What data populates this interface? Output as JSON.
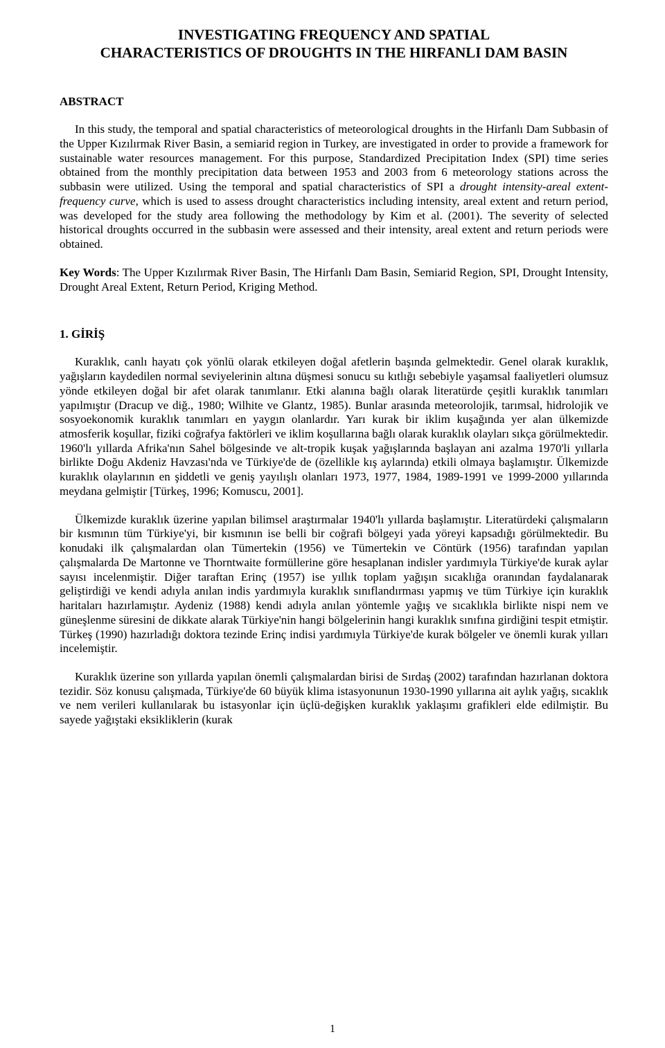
{
  "title_line1": "INVESTIGATING FREQUENCY AND SPATIAL",
  "title_line2": "CHARACTERISTICS OF DROUGHTS IN THE HIRFANLI DAM BASIN",
  "abstract_heading": "ABSTRACT",
  "abstract_pre": "In this study, the temporal and spatial characteristics of meteorological droughts in the Hirfanlı Dam Subbasin of the Upper Kızılırmak River Basin, a semiarid region in Turkey, are investigated in order to provide a framework for sustainable water resources management. For this purpose, Standardized Precipitation Index (SPI) time series obtained from the monthly precipitation data between 1953 and 2003 from 6 meteorology stations across the subbasin were utilized. Using the temporal and spatial characteristics of SPI a ",
  "abstract_italic": "drought intensity-areal extent-frequency curve",
  "abstract_post": ", which is used to assess drought characteristics including intensity, areal extent and return period, was developed for the study area following the methodology by Kim et al. (2001). The severity of selected historical droughts occurred in the subbasin were assessed and their intensity, areal extent and return periods were obtained.",
  "keywords_label": "Key Words",
  "keywords_text": ": The Upper Kızılırmak River Basin, The Hirfanlı Dam Basin, Semiarid Region, SPI, Drought Intensity, Drought Areal Extent, Return Period, Kriging Method.",
  "section_heading": "1. GİRİŞ",
  "para1": "Kuraklık, canlı hayatı çok yönlü olarak etkileyen doğal afetlerin başında gelmektedir. Genel olarak kuraklık, yağışların kaydedilen normal seviyelerinin altına düşmesi sonucu su kıtlığı sebebiyle yaşamsal faaliyetleri olumsuz yönde etkileyen doğal bir afet olarak tanımlanır. Etki alanına bağlı olarak literatürde çeşitli kuraklık tanımları yapılmıştır (Dracup ve diğ., 1980; Wilhite ve Glantz, 1985). Bunlar arasında meteorolojik, tarımsal, hidrolojik ve sosyoekonomik kuraklık tanımları en yaygın olanlardır. Yarı kurak bir iklim kuşağında yer alan ülkemizde atmosferik koşullar, fiziki coğrafya faktörleri ve iklim koşullarına bağlı olarak kuraklık olayları sıkça görülmektedir. 1960'lı yıllarda Afrika'nın Sahel bölgesinde ve alt-tropik kuşak yağışlarında başlayan ani azalma 1970'li yıllarla birlikte Doğu Akdeniz Havzası'nda ve Türkiye'de de (özellikle kış aylarında) etkili olmaya başlamıştır. Ülkemizde kuraklık olaylarının en şiddetli ve geniş yayılışlı olanları 1973, 1977, 1984, 1989-1991 ve 1999-2000 yıllarında meydana gelmiştir [Türkeş, 1996; Komuscu, 2001].",
  "para2": "Ülkemizde kuraklık üzerine yapılan bilimsel araştırmalar 1940'lı yıllarda başlamıştır. Literatürdeki çalışmaların bir kısmının tüm Türkiye'yi, bir kısmının ise belli bir coğrafi bölgeyi yada yöreyi kapsadığı görülmektedir. Bu konudaki ilk çalışmalardan olan Tümertekin (1956) ve Tümertekin ve Cöntürk (1956) tarafından yapılan çalışmalarda De Martonne ve Thorntwaite formüllerine göre hesaplanan indisler yardımıyla Türkiye'de kurak aylar sayısı incelenmiştir. Diğer taraftan Erinç (1957) ise yıllık toplam yağışın sıcaklığa oranından faydalanarak geliştirdiği ve kendi adıyla anılan indis yardımıyla kuraklık sınıflandırması yapmış ve tüm Türkiye için kuraklık haritaları hazırlamıştır. Aydeniz (1988) kendi adıyla anılan yöntemle yağış ve sıcaklıkla birlikte nispi nem ve güneşlenme süresini de dikkate alarak Türkiye'nin hangi bölgelerinin hangi kuraklık sınıfına girdiğini tespit etmiştir. Türkeş (1990) hazırladığı doktora tezinde Erinç indisi yardımıyla Türkiye'de kurak bölgeler ve önemli kurak yılları incelemiştir.",
  "para3": "Kuraklık üzerine son yıllarda yapılan önemli çalışmalardan birisi de Sırdaş (2002) tarafından hazırlanan doktora tezidir. Söz konusu çalışmada, Türkiye'de 60 büyük klima istasyonunun 1930-1990 yıllarına ait aylık yağış, sıcaklık ve nem verileri kullanılarak bu istasyonlar için üçlü-değişken kuraklık yaklaşımı grafikleri elde edilmiştir. Bu sayede yağıştaki eksikliklerin (kurak",
  "page_number": "1"
}
